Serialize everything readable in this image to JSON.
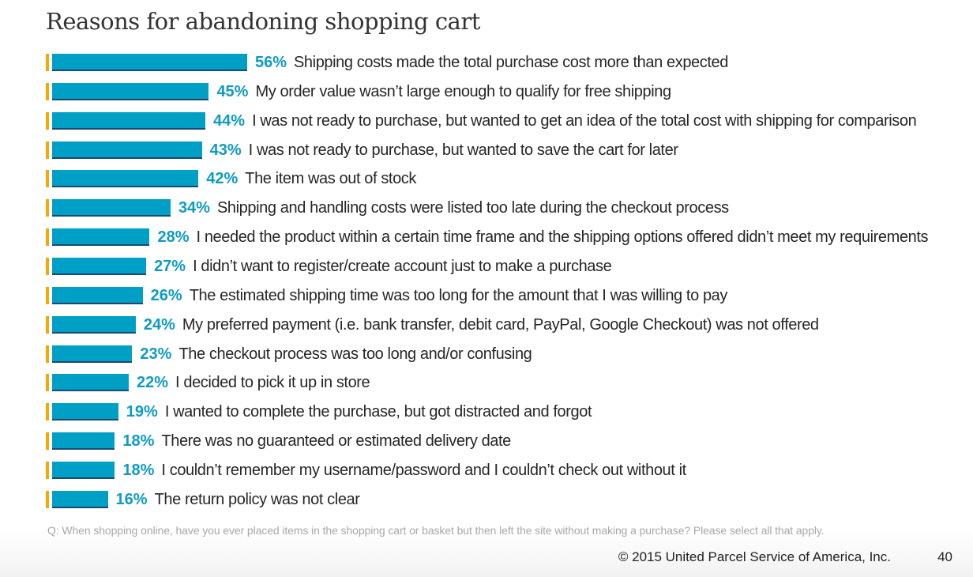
{
  "chart_data": {
    "type": "bar",
    "orientation": "horizontal",
    "title": "Reasons for abandoning shopping cart",
    "unit": "%",
    "categories": [
      "Shipping costs made the total purchase cost more than expected",
      "My order value wasn’t large enough to qualify for free shipping",
      "I was not ready to purchase, but wanted to get an idea of the total cost with shipping for comparison",
      "I was not ready to purchase, but wanted to save the cart for later",
      "The item was out of stock",
      "Shipping and handling costs were listed too late during the checkout process",
      "I needed the product within a certain time frame and the shipping options offered didn’t meet my requirements",
      "I didn’t want to register/create account just to make a purchase",
      "The estimated shipping time was too long for the amount that I was willing to pay",
      "My preferred payment (i.e. bank transfer, debit card, PayPal, Google Checkout) was not offered",
      "The checkout process was too long and/or confusing",
      "I decided to pick it up in store",
      "I wanted to complete the purchase, but got distracted and forgot",
      "There was no guaranteed or estimated delivery date",
      "I couldn’t remember my username/password and I couldn’t check out without it",
      "The return policy was not clear"
    ],
    "values": [
      56,
      45,
      44,
      43,
      42,
      34,
      28,
      27,
      26,
      24,
      23,
      22,
      19,
      18,
      18,
      16
    ],
    "labels": [
      "56%",
      "45%",
      "44%",
      "43%",
      "42%",
      "34%",
      "28%",
      "27%",
      "26%",
      "24%",
      "23%",
      "22%",
      "19%",
      "18%",
      "18%",
      "16%"
    ],
    "xlim": [
      0,
      100
    ],
    "grid": false,
    "colors": {
      "bar": "#00a0c6",
      "bar_border": "#1a4a72",
      "accent": "#f5a800",
      "label": "#0e9bc3"
    }
  },
  "question": "Q: When shopping online, have you ever placed items in the shopping cart or basket but then left the site without making a purchase? Please select all that apply.",
  "footer": {
    "copyright": "© 2015 United Parcel Service of America, Inc.",
    "page_number": "40"
  }
}
